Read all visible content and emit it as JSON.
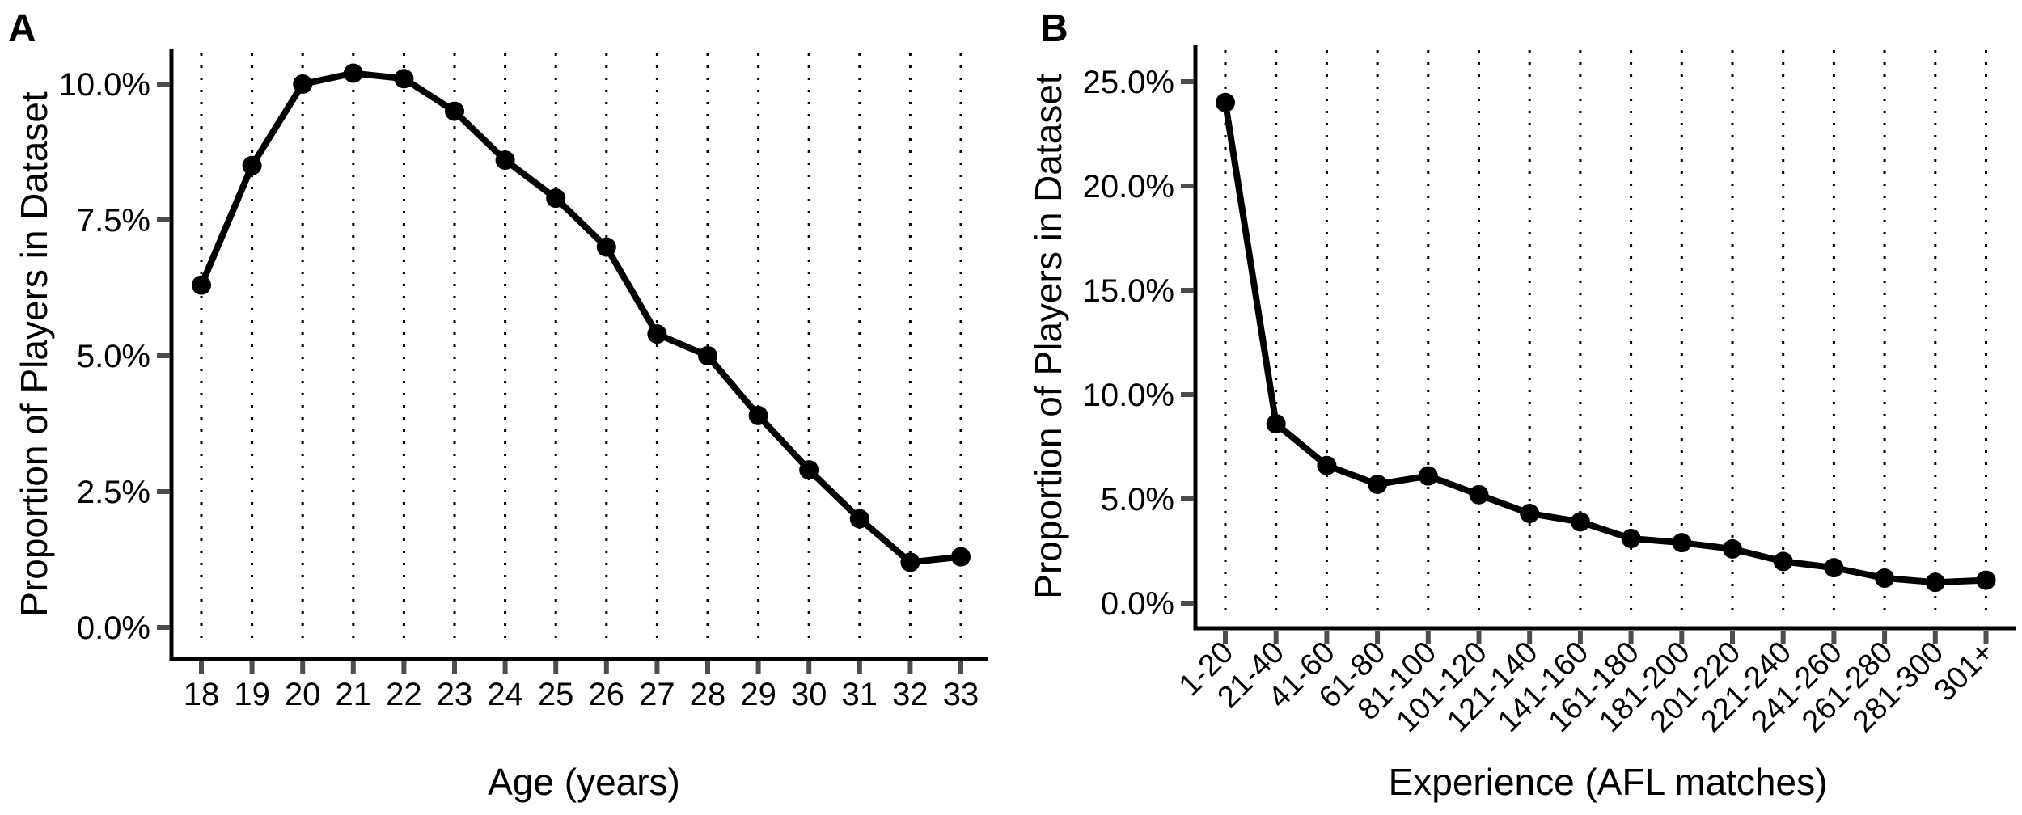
{
  "figure": {
    "background": "#ffffff",
    "series_color": "#000000",
    "text_color": "#000000",
    "tick_color": "#4d4d4d",
    "gridline_style": "dotted-vertical"
  },
  "panels": [
    {
      "letter": "A"
    },
    {
      "letter": "B"
    }
  ],
  "chart_data": [
    {
      "type": "line",
      "panel": "A",
      "title": "",
      "categories": [
        "18",
        "19",
        "20",
        "21",
        "22",
        "23",
        "24",
        "25",
        "26",
        "27",
        "28",
        "29",
        "30",
        "31",
        "32",
        "33"
      ],
      "values": [
        6.3,
        8.5,
        10.0,
        10.2,
        10.1,
        9.5,
        8.6,
        7.9,
        7.0,
        5.4,
        5.0,
        3.9,
        2.9,
        2.0,
        1.2,
        1.3
      ],
      "xlabel": "Age (years)",
      "ylabel": "Proportion of Players in Dataset",
      "ylim": [
        0,
        10.6
      ],
      "yticks": [
        0,
        2.5,
        5,
        7.5,
        10
      ],
      "ytick_labels": [
        "0.0%",
        "2.5%",
        "5.0%",
        "7.5%",
        "10.0%"
      ],
      "grid": "vertical-dotted",
      "legend": "none",
      "marker": "filled-circle",
      "line_color": "#000000"
    },
    {
      "type": "line",
      "panel": "B",
      "title": "",
      "categories": [
        "1-20",
        "21-40",
        "41-60",
        "61-80",
        "81-100",
        "101-120",
        "121-140",
        "141-160",
        "161-180",
        "181-200",
        "201-220",
        "221-240",
        "241-260",
        "261-280",
        "281-300",
        "301+"
      ],
      "values": [
        24.0,
        8.6,
        6.6,
        5.7,
        6.1,
        5.2,
        4.3,
        3.9,
        3.1,
        2.9,
        2.6,
        2.0,
        1.7,
        1.2,
        1.0,
        1.1
      ],
      "xlabel": "Experience (AFL matches)",
      "ylabel": "Proportion of Players in Dataset",
      "ylim": [
        0,
        26
      ],
      "yticks": [
        0,
        5,
        10,
        15,
        20,
        25
      ],
      "ytick_labels": [
        "0.0%",
        "5.0%",
        "10.0%",
        "15.0%",
        "20.0%",
        "25.0%"
      ],
      "grid": "vertical-dotted",
      "legend": "none",
      "marker": "filled-circle",
      "line_color": "#000000"
    }
  ]
}
